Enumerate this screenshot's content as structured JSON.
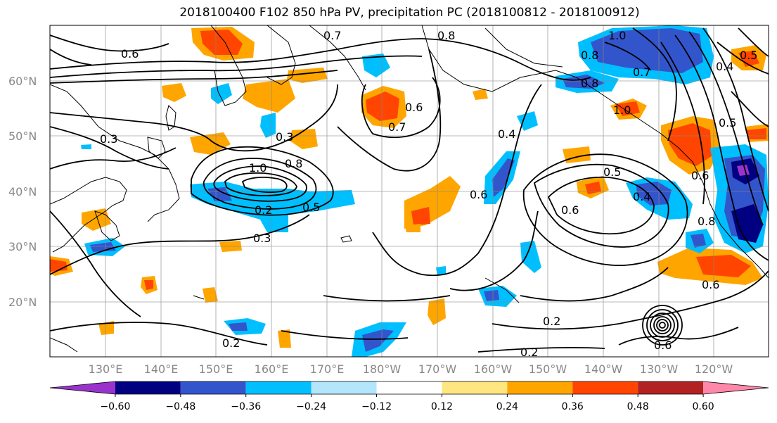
{
  "title": "2018100400 F102 850 hPa PV, precipitation PC (2018100812 - 2018100912)",
  "latitude_labels": [
    "60°N",
    "50°N",
    "40°N",
    "30°N",
    "20°N"
  ],
  "longitude_labels": [
    "130°E",
    "140°E",
    "150°E",
    "160°E",
    "170°E",
    "180°W",
    "170°W",
    "160°W",
    "150°W",
    "140°W",
    "130°W",
    "120°W"
  ],
  "contour_labels": [
    "0.7",
    "0.8",
    "0.6",
    "0.6",
    "1.0",
    "0.8",
    "0.3",
    "1.0",
    "0.8",
    "0.7",
    "0.3",
    "1.0",
    "0.8",
    "0.5",
    "0.7",
    "0.6",
    "0.4",
    "0.6",
    "0.5",
    "0.4",
    "0.6",
    "0.8",
    "0.3",
    "0.2",
    "0.2",
    "0.2",
    "0.6",
    "0.5",
    "0.4",
    "0.5",
    "0.2",
    "0.6"
  ],
  "colorbar": {
    "ticks": [
      "−0.60",
      "−0.48",
      "−0.36",
      "−0.24",
      "−0.12",
      "0.12",
      "0.24",
      "0.36",
      "0.48",
      "0.60"
    ],
    "colors": [
      "#9933cc",
      "#000080",
      "#3355cc",
      "#00bfff",
      "#b3e5fc",
      "#ffffff",
      "#ffe680",
      "#ffa500",
      "#ff4500",
      "#b22222",
      "#ff88aa"
    ]
  }
}
